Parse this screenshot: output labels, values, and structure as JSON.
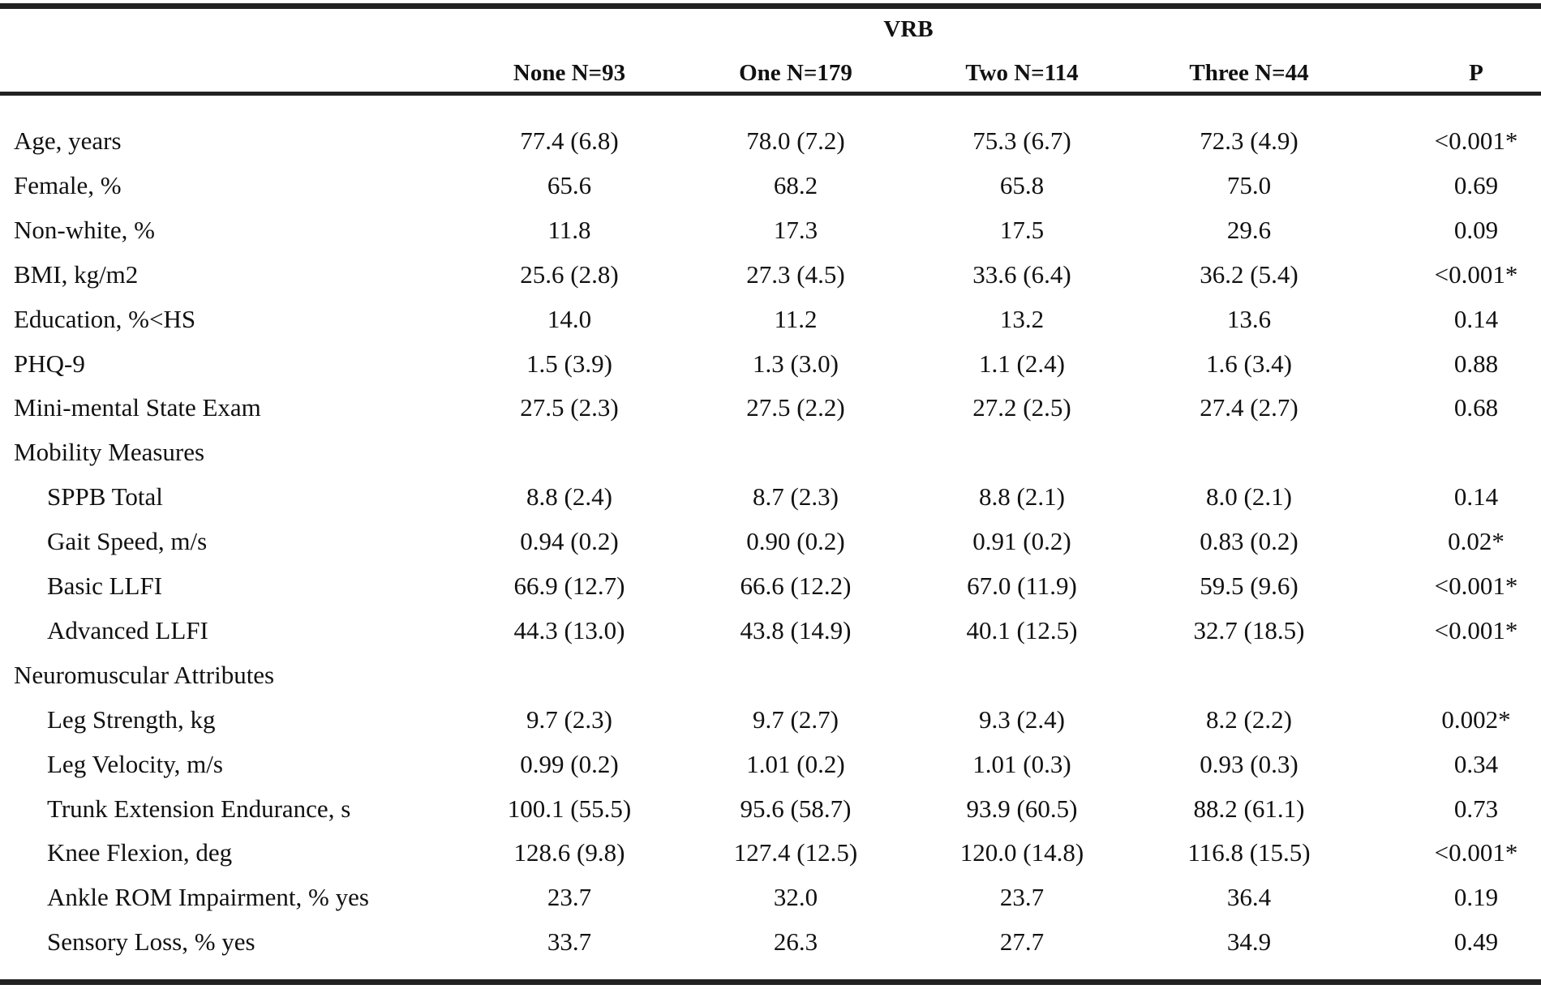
{
  "table": {
    "group_header": "VRB",
    "columns": [
      "None N=93",
      "One N=179",
      "Two N=114",
      "Three N=44",
      "P"
    ],
    "rows": [
      {
        "label": "Age, years",
        "indent": false,
        "values": [
          "77.4 (6.8)",
          "78.0 (7.2)",
          "75.3 (6.7)",
          "72.3 (4.9)",
          "<0.001*"
        ]
      },
      {
        "label": "Female, %",
        "indent": false,
        "values": [
          "65.6",
          "68.2",
          "65.8",
          "75.0",
          "0.69"
        ]
      },
      {
        "label": "Non-white, %",
        "indent": false,
        "values": [
          "11.8",
          "17.3",
          "17.5",
          "29.6",
          "0.09"
        ]
      },
      {
        "label": "BMI, kg/m2",
        "indent": false,
        "values": [
          "25.6 (2.8)",
          "27.3 (4.5)",
          "33.6 (6.4)",
          "36.2 (5.4)",
          "<0.001*"
        ]
      },
      {
        "label": "Education, %<HS",
        "indent": false,
        "values": [
          "14.0",
          "11.2",
          "13.2",
          "13.6",
          "0.14"
        ]
      },
      {
        "label": "PHQ-9",
        "indent": false,
        "values": [
          "1.5 (3.9)",
          "1.3 (3.0)",
          "1.1 (2.4)",
          "1.6 (3.4)",
          "0.88"
        ]
      },
      {
        "label": "Mini-mental State Exam",
        "indent": false,
        "values": [
          "27.5 (2.3)",
          "27.5 (2.2)",
          "27.2 (2.5)",
          "27.4 (2.7)",
          "0.68"
        ]
      },
      {
        "label": "Mobility Measures",
        "indent": false,
        "values": [
          "",
          "",
          "",
          "",
          ""
        ]
      },
      {
        "label": "SPPB Total",
        "indent": true,
        "values": [
          "8.8 (2.4)",
          "8.7 (2.3)",
          "8.8 (2.1)",
          "8.0 (2.1)",
          "0.14"
        ]
      },
      {
        "label": "Gait Speed, m/s",
        "indent": true,
        "values": [
          "0.94 (0.2)",
          "0.90 (0.2)",
          "0.91 (0.2)",
          "0.83 (0.2)",
          "0.02*"
        ]
      },
      {
        "label": "Basic LLFI",
        "indent": true,
        "values": [
          "66.9 (12.7)",
          "66.6 (12.2)",
          "67.0 (11.9)",
          "59.5 (9.6)",
          "<0.001*"
        ]
      },
      {
        "label": "Advanced LLFI",
        "indent": true,
        "values": [
          "44.3 (13.0)",
          "43.8 (14.9)",
          "40.1 (12.5)",
          "32.7 (18.5)",
          "<0.001*"
        ]
      },
      {
        "label": "Neuromuscular Attributes",
        "indent": false,
        "values": [
          "",
          "",
          "",
          "",
          ""
        ]
      },
      {
        "label": "Leg Strength, kg",
        "indent": true,
        "values": [
          "9.7 (2.3)",
          "9.7 (2.7)",
          "9.3 (2.4)",
          "8.2 (2.2)",
          "0.002*"
        ]
      },
      {
        "label": "Leg Velocity, m/s",
        "indent": true,
        "values": [
          "0.99 (0.2)",
          "1.01 (0.2)",
          "1.01 (0.3)",
          "0.93 (0.3)",
          "0.34"
        ]
      },
      {
        "label": "Trunk Extension Endurance, s",
        "indent": true,
        "values": [
          "100.1 (55.5)",
          "95.6 (58.7)",
          "93.9 (60.5)",
          "88.2 (61.1)",
          "0.73"
        ]
      },
      {
        "label": "Knee Flexion, deg",
        "indent": true,
        "values": [
          "128.6 (9.8)",
          "127.4 (12.5)",
          "120.0 (14.8)",
          "116.8 (15.5)",
          "<0.001*"
        ]
      },
      {
        "label": "Ankle ROM Impairment, % yes",
        "indent": true,
        "values": [
          "23.7",
          "32.0",
          "23.7",
          "36.4",
          "0.19"
        ]
      },
      {
        "label": "Sensory Loss, % yes",
        "indent": true,
        "values": [
          "33.7",
          "26.3",
          "27.7",
          "34.9",
          "0.49"
        ]
      }
    ]
  }
}
